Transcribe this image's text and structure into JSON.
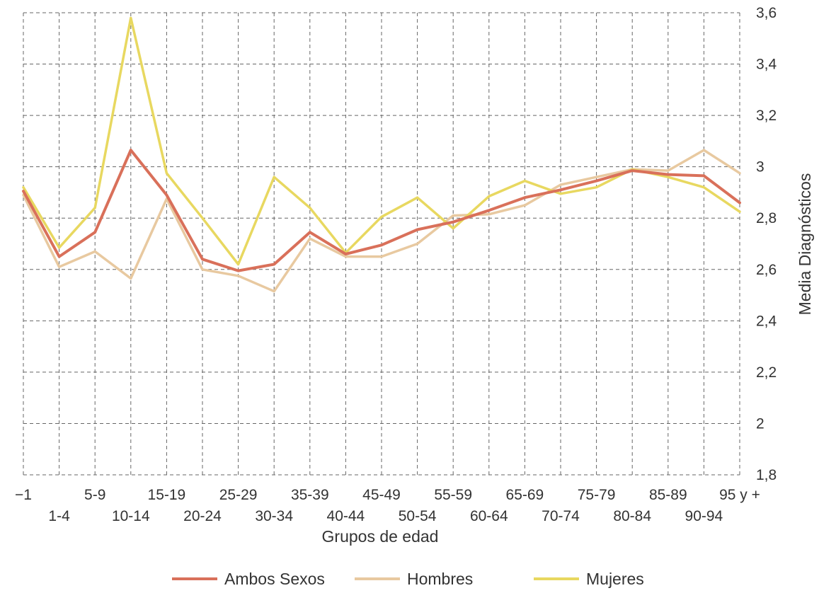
{
  "chart_data": {
    "type": "line",
    "categories": [
      "−1",
      "1-4",
      "5-9",
      "10-14",
      "15-19",
      "20-24",
      "25-29",
      "30-34",
      "35-39",
      "40-44",
      "45-49",
      "50-54",
      "55-59",
      "60-64",
      "65-69",
      "70-74",
      "75-79",
      "80-84",
      "85-89",
      "90-94",
      "95 y +"
    ],
    "xlabel": "Grupos de edad",
    "ylabel": "Media Diagnósticos",
    "ylim": [
      1.8,
      3.6
    ],
    "yticks": [
      1.8,
      2.0,
      2.2,
      2.4,
      2.6,
      2.8,
      3.0,
      3.2,
      3.4,
      3.6
    ],
    "ytick_labels": [
      "1,8",
      "2",
      "2,2",
      "2,4",
      "2,6",
      "2,8",
      "3",
      "3,2",
      "3,4",
      "3,6"
    ],
    "y_axis_side": "right",
    "grid": true,
    "legend_position": "bottom",
    "series": [
      {
        "name": "Ambos Sexos",
        "color": "#d9705a",
        "values": [
          2.905,
          2.65,
          2.745,
          3.065,
          2.89,
          2.64,
          2.595,
          2.62,
          2.745,
          2.66,
          2.695,
          2.755,
          2.785,
          2.83,
          2.88,
          2.91,
          2.945,
          2.985,
          2.97,
          2.965,
          2.86
        ]
      },
      {
        "name": "Hombres",
        "color": "#e8c9a0",
        "values": [
          2.89,
          2.61,
          2.67,
          2.565,
          2.875,
          2.6,
          2.575,
          2.515,
          2.72,
          2.65,
          2.65,
          2.7,
          2.81,
          2.815,
          2.85,
          2.93,
          2.96,
          2.99,
          2.985,
          3.065,
          2.975
        ]
      },
      {
        "name": "Mujeres",
        "color": "#e8d860",
        "values": [
          2.92,
          2.685,
          2.84,
          3.58,
          2.975,
          2.8,
          2.62,
          2.96,
          2.84,
          2.665,
          2.805,
          2.88,
          2.76,
          2.885,
          2.945,
          2.895,
          2.92,
          2.99,
          2.96,
          2.92,
          2.825
        ]
      }
    ]
  }
}
